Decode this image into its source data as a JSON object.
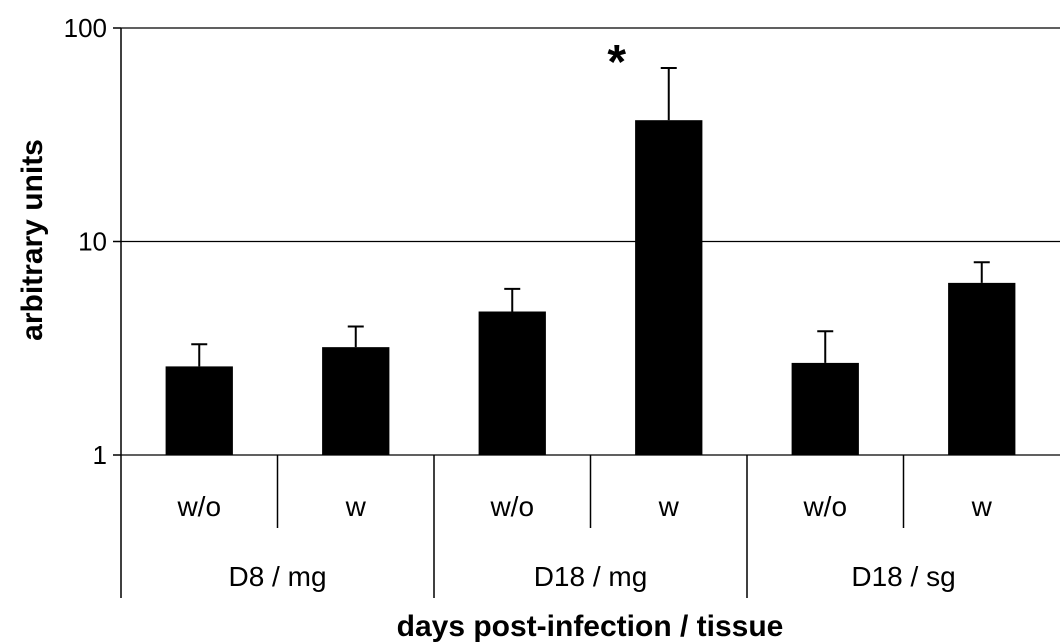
{
  "chart_data": {
    "type": "bar",
    "ylabel": "arbitrary units",
    "xlabel": "days post-infection / tissue",
    "yscale": "log",
    "ylim": [
      1,
      100
    ],
    "yticks": [
      1,
      10,
      100
    ],
    "ytick_labels": [
      "1",
      "10",
      "100"
    ],
    "grid": "horizontal",
    "legend": "none",
    "colors": {
      "bar": "#000000",
      "axis": "#000000"
    },
    "groups": [
      {
        "label": "D8 / mg",
        "categories": [
          "w/o",
          "w"
        ]
      },
      {
        "label": "D18 / mg",
        "categories": [
          "w/o",
          "w"
        ]
      },
      {
        "label": "D18 / sg",
        "categories": [
          "w/o",
          "w"
        ]
      }
    ],
    "categories": [
      "w/o",
      "w",
      "w/o",
      "w",
      "w/o",
      "w"
    ],
    "values": [
      2.6,
      3.2,
      4.7,
      37,
      2.7,
      6.4
    ],
    "error_upper": [
      3.3,
      4.0,
      6.0,
      65,
      3.8,
      8.0
    ],
    "annotations": [
      {
        "text": "*",
        "category_index": 3
      }
    ]
  }
}
